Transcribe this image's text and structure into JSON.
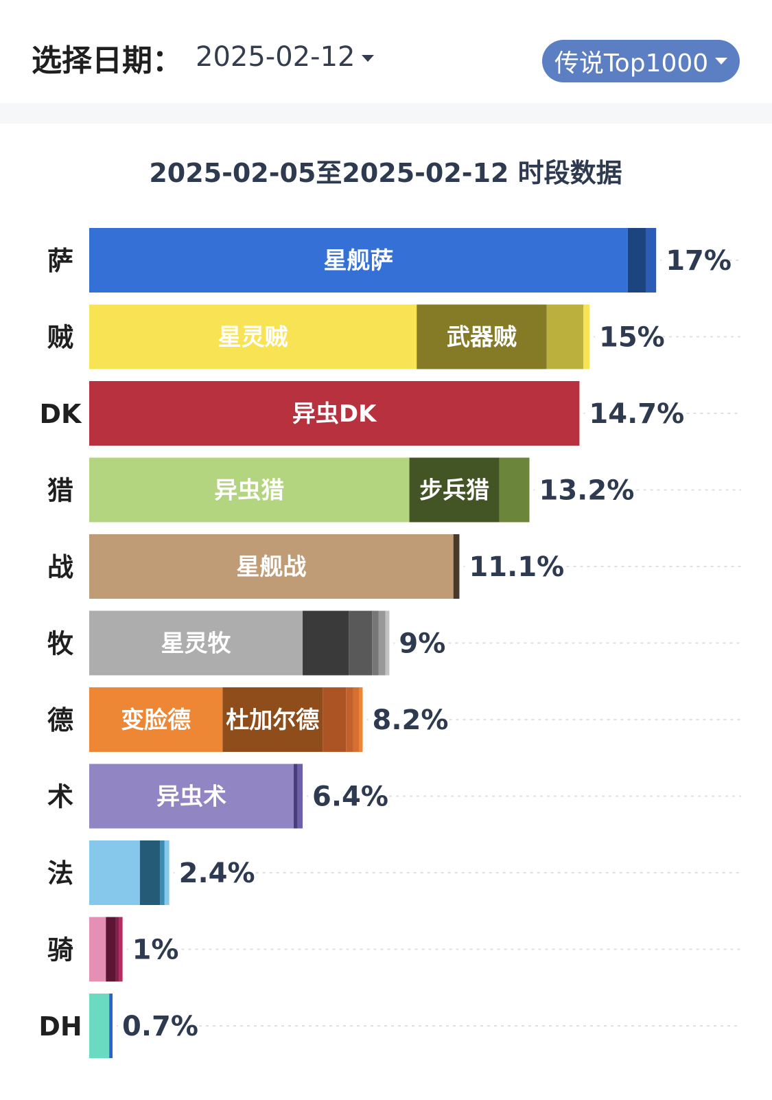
{
  "header": {
    "date_label": "选择日期：",
    "date_value": "2025-02-12",
    "filter_label": "传说Top1000"
  },
  "chart_data": {
    "type": "bar",
    "orientation": "horizontal",
    "stacked": true,
    "title": "2025-02-05至2025-02-12 时段数据",
    "grid": "dashed horizontal lines",
    "categories": [
      "萨",
      "贼",
      "DK",
      "猎",
      "战",
      "牧",
      "德",
      "术",
      "法",
      "骑",
      "DH"
    ],
    "totals": [
      "17%",
      "15%",
      "14.7%",
      "13.2%",
      "11.1%",
      "9%",
      "8.2%",
      "6.4%",
      "2.4%",
      "1%",
      "0.7%"
    ],
    "bars": [
      {
        "total": 17,
        "segments": [
          {
            "label": "星舰萨",
            "value": 16.15,
            "color": "#3570d6"
          },
          {
            "label": "",
            "value": 0.55,
            "color": "#1c447e"
          },
          {
            "label": "",
            "value": 0.3,
            "color": "#2b5db8"
          }
        ]
      },
      {
        "total": 15,
        "segments": [
          {
            "label": "星灵贼",
            "value": 9.82,
            "color": "#f8e355"
          },
          {
            "label": "武器贼",
            "value": 3.9,
            "color": "#857a26"
          },
          {
            "label": "",
            "value": 1.1,
            "color": "#bbb03e"
          },
          {
            "label": "",
            "value": 0.18,
            "color": "#f8e355"
          }
        ]
      },
      {
        "total": 14.7,
        "segments": [
          {
            "label": "异虫DK",
            "value": 14.7,
            "color": "#b7313f"
          }
        ]
      },
      {
        "total": 13.2,
        "segments": [
          {
            "label": "异虫猎",
            "value": 9.6,
            "color": "#b4d57f"
          },
          {
            "label": "步兵猎",
            "value": 2.7,
            "color": "#435425"
          },
          {
            "label": "",
            "value": 0.9,
            "color": "#6b853a"
          }
        ]
      },
      {
        "total": 11.1,
        "segments": [
          {
            "label": "星舰战",
            "value": 10.92,
            "color": "#bf9b76"
          },
          {
            "label": "",
            "value": 0.18,
            "color": "#4a3a29"
          }
        ]
      },
      {
        "total": 9,
        "segments": [
          {
            "label": "星灵牧",
            "value": 6.4,
            "color": "#adadad"
          },
          {
            "label": "",
            "value": 1.38,
            "color": "#3a3a3a"
          },
          {
            "label": "",
            "value": 0.7,
            "color": "#595959"
          },
          {
            "label": "",
            "value": 0.2,
            "color": "#777777"
          },
          {
            "label": "",
            "value": 0.2,
            "color": "#999999"
          },
          {
            "label": "",
            "value": 0.12,
            "color": "#c2c2c2"
          }
        ]
      },
      {
        "total": 8.2,
        "segments": [
          {
            "label": "变脸德",
            "value": 4,
            "color": "#ed8736"
          },
          {
            "label": "杜加尔德",
            "value": 3,
            "color": "#8f4d1c"
          },
          {
            "label": "",
            "value": 0.7,
            "color": "#ac5424"
          },
          {
            "label": "",
            "value": 0.22,
            "color": "#c2612a"
          },
          {
            "label": "",
            "value": 0.18,
            "color": "#d66f30"
          },
          {
            "label": "",
            "value": 0.1,
            "color": "#ed8736"
          }
        ]
      },
      {
        "total": 6.4,
        "segments": [
          {
            "label": "异虫术",
            "value": 6.13,
            "color": "#9185c4"
          },
          {
            "label": "",
            "value": 0.12,
            "color": "#4a3f7a"
          },
          {
            "label": "",
            "value": 0.15,
            "color": "#6e5fab"
          }
        ]
      },
      {
        "total": 2.4,
        "segments": [
          {
            "label": "",
            "value": 1.52,
            "color": "#86c8eb"
          },
          {
            "label": "",
            "value": 0.6,
            "color": "#255b76"
          },
          {
            "label": "",
            "value": 0.14,
            "color": "#3b8cb3"
          },
          {
            "label": "",
            "value": 0.14,
            "color": "#86c8eb"
          }
        ]
      },
      {
        "total": 1,
        "segments": [
          {
            "label": "",
            "value": 0.5,
            "color": "#e58fb5"
          },
          {
            "label": "",
            "value": 0.3,
            "color": "#5c1634"
          },
          {
            "label": "",
            "value": 0.1,
            "color": "#861e4b"
          },
          {
            "label": "",
            "value": 0.1,
            "color": "#b62c61"
          }
        ]
      },
      {
        "total": 0.7,
        "segments": [
          {
            "label": "",
            "value": 0.6,
            "color": "#6adbc0"
          },
          {
            "label": "",
            "value": 0.1,
            "color": "#2a63d1"
          }
        ]
      }
    ]
  }
}
